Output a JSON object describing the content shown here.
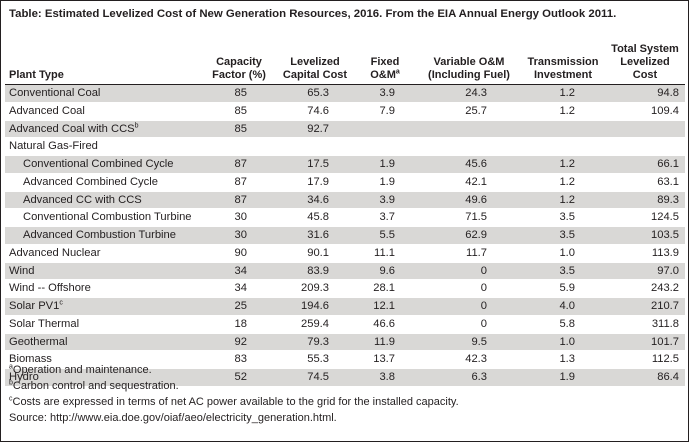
{
  "caption": {
    "lead": "Table:",
    "text": "Estimated Levelized Cost of New Generation Resources, 2016. From the EIA Annual Energy Outlook 2011."
  },
  "headers": {
    "plant_type": "Plant Type",
    "capacity_factor": [
      "Capacity",
      "Factor (%)"
    ],
    "levelized_capital": [
      "Levelized",
      "Capital Cost"
    ],
    "fixed_om": "Fixed O&M",
    "fixed_om_mark": "a",
    "variable_om": [
      "Variable O&M",
      "(Including Fuel)"
    ],
    "transmission": [
      "Transmission",
      "Investment"
    ],
    "total": [
      "Total System",
      "Levelized Cost"
    ]
  },
  "rows": [
    {
      "name": "Conventional Coal",
      "mark": "",
      "indent": false,
      "shaded": true,
      "cells": [
        "85",
        "65.3",
        "3.9",
        "24.3",
        "1.2",
        "94.8"
      ]
    },
    {
      "name": "Advanced Coal",
      "mark": "",
      "indent": false,
      "shaded": false,
      "cells": [
        "85",
        "74.6",
        "7.9",
        "25.7",
        "1.2",
        "109.4"
      ]
    },
    {
      "name": "Advanced Coal with CCS",
      "mark": "b",
      "indent": false,
      "shaded": true,
      "cells": [
        "85",
        "92.7",
        "",
        "",
        "",
        ""
      ]
    },
    {
      "name": "Natural Gas-Fired",
      "mark": "",
      "indent": false,
      "shaded": false,
      "cells": [
        "",
        "",
        "",
        "",
        "",
        ""
      ]
    },
    {
      "name": "Conventional Combined Cycle",
      "mark": "",
      "indent": true,
      "shaded": true,
      "cells": [
        "87",
        "17.5",
        "1.9",
        "45.6",
        "1.2",
        "66.1"
      ]
    },
    {
      "name": "Advanced Combined Cycle",
      "mark": "",
      "indent": true,
      "shaded": false,
      "cells": [
        "87",
        "17.9",
        "1.9",
        "42.1",
        "1.2",
        "63.1"
      ]
    },
    {
      "name": "Advanced CC with CCS",
      "mark": "",
      "indent": true,
      "shaded": true,
      "cells": [
        "87",
        "34.6",
        "3.9",
        "49.6",
        "1.2",
        "89.3"
      ]
    },
    {
      "name": "Conventional Combustion Turbine",
      "mark": "",
      "indent": true,
      "shaded": false,
      "cells": [
        "30",
        "45.8",
        "3.7",
        "71.5",
        "3.5",
        "124.5"
      ]
    },
    {
      "name": "Advanced Combustion Turbine",
      "mark": "",
      "indent": true,
      "shaded": true,
      "cells": [
        "30",
        "31.6",
        "5.5",
        "62.9",
        "3.5",
        "103.5"
      ]
    },
    {
      "name": "Advanced Nuclear",
      "mark": "",
      "indent": false,
      "shaded": false,
      "cells": [
        "90",
        "90.1",
        "11.1",
        "11.7",
        "1.0",
        "113.9"
      ]
    },
    {
      "name": "Wind",
      "mark": "",
      "indent": false,
      "shaded": true,
      "cells": [
        "34",
        "83.9",
        "9.6",
        "0",
        "3.5",
        "97.0"
      ]
    },
    {
      "name": "Wind -- Offshore",
      "mark": "",
      "indent": false,
      "shaded": false,
      "cells": [
        "34",
        "209.3",
        "28.1",
        "0",
        "5.9",
        "243.2"
      ]
    },
    {
      "name": "Solar PV1",
      "mark": "c",
      "indent": false,
      "shaded": true,
      "cells": [
        "25",
        "194.6",
        "12.1",
        "0",
        "4.0",
        "210.7"
      ]
    },
    {
      "name": "Solar Thermal",
      "mark": "",
      "indent": false,
      "shaded": false,
      "cells": [
        "18",
        "259.4",
        "46.6",
        "0",
        "5.8",
        "311.8"
      ]
    },
    {
      "name": "Geothermal",
      "mark": "",
      "indent": false,
      "shaded": true,
      "cells": [
        "92",
        "79.3",
        "11.9",
        "9.5",
        "1.0",
        "101.7"
      ]
    },
    {
      "name": "Biomass",
      "mark": "",
      "indent": false,
      "shaded": false,
      "cells": [
        "83",
        "55.3",
        "13.7",
        "42.3",
        "1.3",
        "112.5"
      ]
    },
    {
      "name": "Hydro",
      "mark": "",
      "indent": false,
      "shaded": true,
      "cells": [
        "52",
        "74.5",
        "3.8",
        "6.3",
        "1.9",
        "86.4"
      ]
    }
  ],
  "notes": [
    {
      "mark": "a",
      "text": "Operation and maintenance."
    },
    {
      "mark": "b",
      "text": "Carbon control and sequestration."
    },
    {
      "mark": "c",
      "text": "Costs are expressed in terms of net AC power available to the grid for the installed capacity."
    },
    {
      "mark": "",
      "text": "Source: http://www.eia.doe.gov/oiaf/aeo/electricity_generation.html."
    }
  ],
  "colors": {
    "shade": "#d9d8d6",
    "text": "#231f20",
    "border": "#231f20"
  }
}
